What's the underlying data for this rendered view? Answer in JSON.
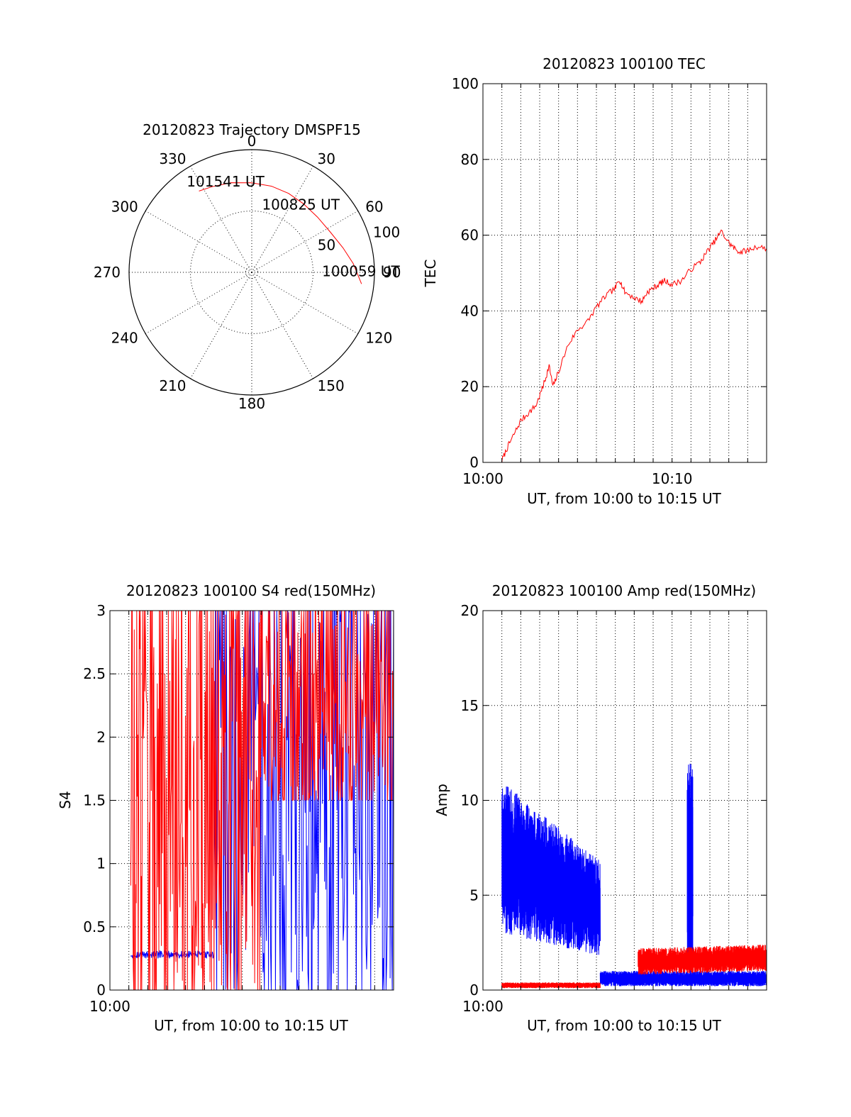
{
  "chart_data": [
    {
      "type": "polar",
      "title": "20120823 Trajectory DMSPF15",
      "azimuth_labels": [
        "0",
        "30",
        "60",
        "90",
        "120",
        "150",
        "180",
        "210",
        "240",
        "270",
        "300",
        "330"
      ],
      "radial_labels": [
        "50",
        "100"
      ],
      "rlim": [
        0,
        100
      ],
      "grid": true,
      "series": [
        {
          "color": "#ff0000",
          "points": [
            {
              "az": 96,
              "r": 90
            },
            {
              "az": 85,
              "r": 83
            },
            {
              "az": 75,
              "r": 77
            },
            {
              "az": 63,
              "r": 72
            },
            {
              "az": 50,
              "r": 70
            },
            {
              "az": 37,
              "r": 70
            },
            {
              "az": 25,
              "r": 71
            },
            {
              "az": 13,
              "r": 72
            },
            {
              "az": 0,
              "r": 73
            },
            {
              "az": -13,
              "r": 75
            },
            {
              "az": -25,
              "r": 77
            },
            {
              "az": -33,
              "r": 79
            }
          ]
        }
      ],
      "annotations": [
        {
          "text": "101541 UT",
          "az": -17,
          "r": 73
        },
        {
          "text": "100825 UT",
          "az": 38,
          "r": 65
        },
        {
          "text": "100059 UT",
          "az": 92,
          "r": 89
        }
      ]
    },
    {
      "type": "line",
      "title": "20120823 100100 TEC",
      "xlabel": "UT, from 10:00 to 10:15 UT",
      "ylabel": "TEC",
      "xlim": [
        0,
        15
      ],
      "ylim": [
        0,
        100
      ],
      "xticks": [
        {
          "v": 0,
          "label": "10:00"
        },
        {
          "v": 10,
          "label": "10:10"
        }
      ],
      "yticks": [
        {
          "v": 0,
          "label": "0"
        },
        {
          "v": 20,
          "label": "20"
        },
        {
          "v": 40,
          "label": "40"
        },
        {
          "v": 60,
          "label": "60"
        },
        {
          "v": 80,
          "label": "80"
        },
        {
          "v": 100,
          "label": "100"
        }
      ],
      "grid": true,
      "series": [
        {
          "color": "#ff0000",
          "x": [
            1.0,
            1.3,
            1.6,
            2.0,
            2.4,
            2.8,
            3.1,
            3.3,
            3.5,
            3.7,
            4.0,
            4.5,
            5.0,
            5.5,
            6.0,
            6.5,
            7.0,
            7.2,
            7.5,
            8.0,
            8.4,
            8.7,
            9.0,
            9.3,
            9.6,
            10.0,
            10.5,
            11.0,
            11.5,
            11.9,
            12.2,
            12.6,
            13.0,
            13.3,
            13.6,
            14.0,
            14.5,
            15.0
          ],
          "y": [
            0.5,
            4,
            7,
            11,
            13,
            15,
            19,
            22,
            25.5,
            20,
            24,
            31,
            35,
            37,
            41,
            44,
            46,
            48.5,
            45,
            43.5,
            42.5,
            45,
            46,
            47,
            48,
            47,
            48,
            51,
            53,
            56,
            58,
            61,
            58,
            56.5,
            55.5,
            56,
            57,
            56.5
          ]
        }
      ]
    },
    {
      "type": "line",
      "title": "20120823 100100 S4 red(150MHz)",
      "xlabel": "UT, from 10:00 to 10:15 UT",
      "ylabel": "S4",
      "xlim": [
        0,
        15
      ],
      "ylim": [
        0,
        3
      ],
      "xticks": [
        {
          "v": 0,
          "label": "10:00"
        }
      ],
      "yticks": [
        {
          "v": 0,
          "label": "0"
        },
        {
          "v": 0.5,
          "label": "0.5"
        },
        {
          "v": 1,
          "label": "1"
        },
        {
          "v": 1.5,
          "label": "1.5"
        },
        {
          "v": 2,
          "label": "2"
        },
        {
          "v": 2.5,
          "label": "2.5"
        },
        {
          "v": 3,
          "label": "3"
        }
      ],
      "grid": true,
      "series": [
        {
          "color": "#0000ff",
          "x_range": [
            1.1,
            5.5
          ],
          "level": 0.28,
          "jitter": 0.03
        },
        {
          "color": "#0000ff",
          "x_range": [
            5.5,
            15
          ],
          "low": 0,
          "high": 3,
          "jitter": 1.5
        },
        {
          "color": "#ff0000",
          "x_range": [
            1.1,
            8.0
          ],
          "low": 0,
          "high": 3,
          "jitter": 1.5
        },
        {
          "color": "#ff0000",
          "x_range": [
            8.0,
            15
          ],
          "low": 1.5,
          "high": 3,
          "jitter": 0.8
        }
      ]
    },
    {
      "type": "line",
      "title": "20120823 100100 Amp red(150MHz)",
      "xlabel": "UT, from 10:00 to 10:15 UT",
      "ylabel": "Amp",
      "xlim": [
        0,
        15
      ],
      "ylim": [
        0,
        20
      ],
      "xticks": [
        {
          "v": 0,
          "label": "10:00"
        }
      ],
      "yticks": [
        {
          "v": 0,
          "label": "0"
        },
        {
          "v": 5,
          "label": "5"
        },
        {
          "v": 10,
          "label": "10"
        },
        {
          "v": 15,
          "label": "15"
        },
        {
          "v": 20,
          "label": "20"
        }
      ],
      "grid": true,
      "series": [
        {
          "color": "#0000ff",
          "x_range": [
            1.0,
            6.2
          ],
          "low_start": 3.0,
          "low_end": 1.8,
          "high_start": 11.0,
          "high_end": 6.8
        },
        {
          "color": "#0000ff",
          "x_range": [
            6.2,
            15
          ],
          "low_start": 0.2,
          "low_end": 0.2,
          "high_start": 1.0,
          "high_end": 1.0
        },
        {
          "color": "#0000ff",
          "x_range": [
            10.8,
            11.1
          ],
          "low_start": 0.3,
          "low_end": 0.3,
          "high_start": 12.0,
          "high_end": 12.0
        },
        {
          "color": "#ff0000",
          "x_range": [
            1.0,
            6.2
          ],
          "low_start": 0.1,
          "low_end": 0.1,
          "high_start": 0.4,
          "high_end": 0.4
        },
        {
          "color": "#ff0000",
          "x_range": [
            8.2,
            15
          ],
          "low_start": 0.8,
          "low_end": 1.0,
          "high_start": 2.2,
          "high_end": 2.4
        }
      ]
    }
  ]
}
